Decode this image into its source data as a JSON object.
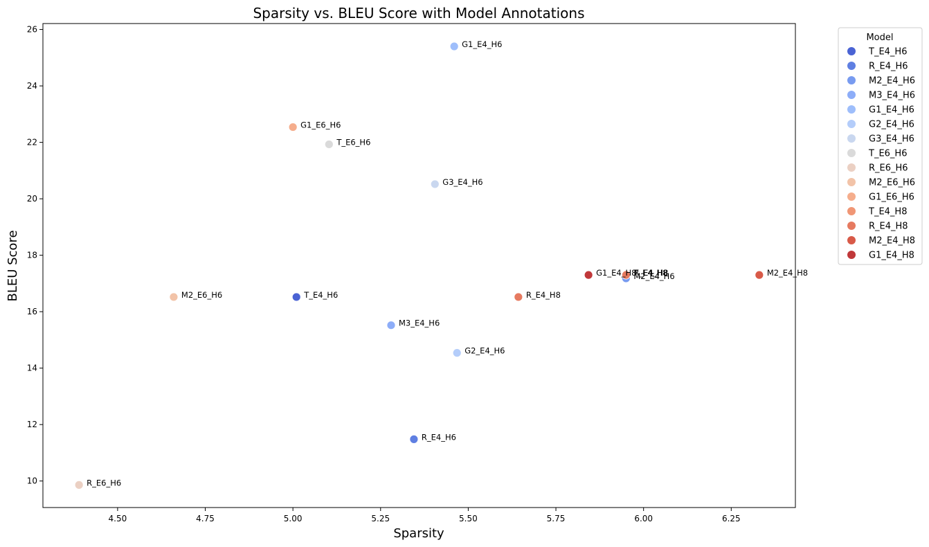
{
  "chart_data": {
    "type": "scatter",
    "title": "Sparsity vs. BLEU Score with Model Annotations",
    "xlabel": "Sparsity",
    "ylabel": "BLEU Score",
    "xlim": [
      4.287,
      6.433
    ],
    "ylim": [
      9.06,
      26.21
    ],
    "xticks": [
      "4.50",
      "4.75",
      "5.00",
      "5.25",
      "5.50",
      "5.75",
      "6.00",
      "6.25"
    ],
    "yticks": [
      "10",
      "12",
      "14",
      "16",
      "18",
      "20",
      "22",
      "24",
      "26"
    ],
    "grid": false,
    "legend_title": "Model",
    "legend_position": "outside-upper-right",
    "series": [
      {
        "name": "T_E4_H6",
        "color": "#4a63d4",
        "points": [
          {
            "x": 5.01,
            "y": 16.52,
            "label": "T_E4_H6"
          }
        ]
      },
      {
        "name": "R_E4_H6",
        "color": "#5f7fe2",
        "points": [
          {
            "x": 5.345,
            "y": 11.48,
            "label": "R_E4_H6"
          }
        ]
      },
      {
        "name": "M2_E4_H6",
        "color": "#789bf0",
        "points": [
          {
            "x": 5.95,
            "y": 17.18,
            "label": "M2_E4_H6"
          }
        ]
      },
      {
        "name": "M3_E4_H6",
        "color": "#8dadf8",
        "points": [
          {
            "x": 5.28,
            "y": 15.52,
            "label": "M3_E4_H6"
          }
        ]
      },
      {
        "name": "G1_E4_H6",
        "color": "#9ebefb",
        "points": [
          {
            "x": 5.46,
            "y": 25.4,
            "label": "G1_E4_H6"
          }
        ]
      },
      {
        "name": "G2_E4_H6",
        "color": "#b4cdfa",
        "points": [
          {
            "x": 5.468,
            "y": 14.54,
            "label": "G2_E4_H6"
          }
        ]
      },
      {
        "name": "G3_E4_H6",
        "color": "#c9d7ef",
        "points": [
          {
            "x": 5.405,
            "y": 20.52,
            "label": "G3_E4_H6"
          }
        ]
      },
      {
        "name": "T_E6_H6",
        "color": "#dadada",
        "points": [
          {
            "x": 5.103,
            "y": 21.93,
            "label": "T_E6_H6"
          }
        ]
      },
      {
        "name": "R_E6_H6",
        "color": "#ebd0c3",
        "points": [
          {
            "x": 4.39,
            "y": 9.86,
            "label": "R_E6_H6"
          }
        ]
      },
      {
        "name": "M2_E6_H6",
        "color": "#f2c3a8",
        "points": [
          {
            "x": 4.66,
            "y": 16.52,
            "label": "M2_E6_H6"
          }
        ]
      },
      {
        "name": "G1_E6_H6",
        "color": "#f5ad8c",
        "points": [
          {
            "x": 5.0,
            "y": 22.54,
            "label": "G1_E6_H6"
          }
        ]
      },
      {
        "name": "T_E4_H8",
        "color": "#f09675",
        "points": [
          {
            "x": 5.95,
            "y": 17.3,
            "label": "T_E4_H8"
          }
        ]
      },
      {
        "name": "R_E4_H8",
        "color": "#e67a60",
        "points": [
          {
            "x": 5.643,
            "y": 16.52,
            "label": "R_E4_H8"
          },
          {
            "x": 5.95,
            "y": 17.3,
            "label": "R_E4_H8"
          }
        ]
      },
      {
        "name": "M2_E4_H8",
        "color": "#d85a48",
        "points": [
          {
            "x": 6.33,
            "y": 17.3,
            "label": "M2_E4_H8"
          }
        ]
      },
      {
        "name": "G1_E4_H8",
        "color": "#c0383a",
        "points": [
          {
            "x": 5.843,
            "y": 17.3,
            "label": "G1_E4_H8"
          }
        ]
      }
    ]
  }
}
